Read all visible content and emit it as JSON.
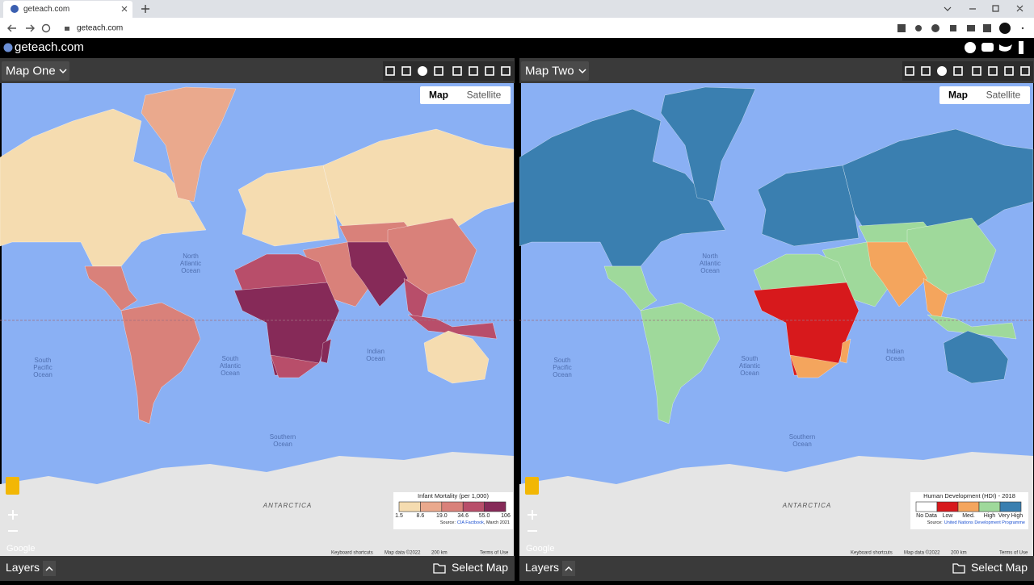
{
  "browser": {
    "tab_title": "geteach.com",
    "url": "geteach.com"
  },
  "site": {
    "title": "geteach.com"
  },
  "panels": [
    {
      "title": "Map One",
      "map_types": [
        "Map",
        "Satellite"
      ],
      "ocean_labels": [
        [
          "North",
          "Atlantic",
          "Ocean"
        ],
        [
          "South",
          "Pacific",
          "Ocean"
        ],
        [
          "South",
          "Atlantic",
          "Ocean"
        ],
        [
          "Indian",
          "Ocean"
        ],
        [
          "Southern",
          "Ocean"
        ]
      ],
      "continent_label": "ANTARCTICA",
      "legend": {
        "title": "Infant Mortality (per 1,000)",
        "colors": [
          "#f5dcb0",
          "#eaa98d",
          "#d9817a",
          "#b84e6a",
          "#862a58"
        ],
        "labels": [
          "1.5",
          "8.6",
          "19.0",
          "34.6",
          "55.0",
          "106"
        ],
        "source_label": "Source:",
        "source_link": "CIA Factbook",
        "source_note": ", March 2021"
      },
      "logo": "Google",
      "attribution": [
        "Keyboard shortcuts",
        "Map data ©2022",
        "200 km",
        "Terms of Use"
      ],
      "footer": {
        "layers": "Layers",
        "select": "Select Map"
      }
    },
    {
      "title": "Map Two",
      "map_types": [
        "Map",
        "Satellite"
      ],
      "ocean_labels": [
        [
          "North",
          "Atlantic",
          "Ocean"
        ],
        [
          "South",
          "Pacific",
          "Ocean"
        ],
        [
          "South",
          "Atlantic",
          "Ocean"
        ],
        [
          "Indian",
          "Ocean"
        ],
        [
          "Southern",
          "Ocean"
        ]
      ],
      "continent_label": "ANTARCTICA",
      "legend": {
        "title": "Human Development (HDI) - 2018",
        "colors": [
          "#ffffff",
          "#d7191c",
          "#f4a55d",
          "#9fd99b",
          "#3a7fb0"
        ],
        "labels": [
          "No Data",
          "Low",
          "Med.",
          "High",
          "Very High"
        ],
        "source_label": "Source:",
        "source_link": "United Nations Development Programme"
      },
      "logo": "Google",
      "attribution": [
        "Keyboard shortcuts",
        "Map data ©2022",
        "200 km",
        "Terms of Use"
      ],
      "footer": {
        "layers": "Layers",
        "select": "Select Map"
      }
    }
  ]
}
